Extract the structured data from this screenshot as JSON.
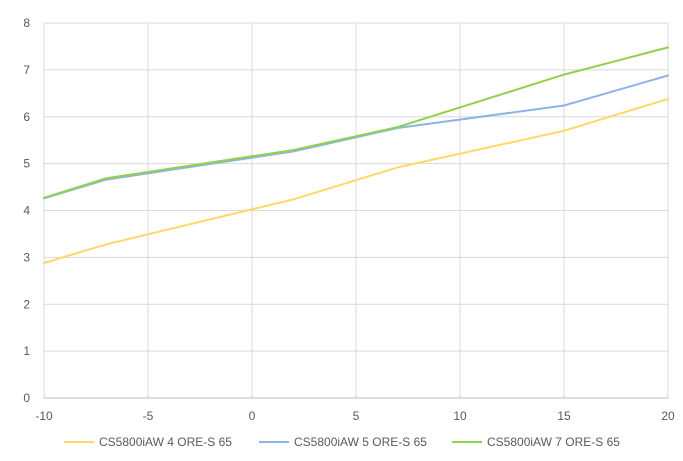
{
  "chart_data": {
    "type": "line",
    "title": "",
    "xlabel": "",
    "ylabel": "",
    "xlim": [
      -10,
      20
    ],
    "ylim": [
      0,
      8
    ],
    "x_ticks": [
      -10,
      -5,
      0,
      5,
      10,
      15,
      20
    ],
    "y_ticks": [
      0,
      1,
      2,
      3,
      4,
      5,
      6,
      7,
      8
    ],
    "grid": "on",
    "legend_position": "bottom",
    "series": [
      {
        "name": "CS5800iAW 4 ORE-S 65",
        "color": "#FFD966",
        "x": [
          -10,
          -7,
          2,
          7,
          15,
          20
        ],
        "y": [
          2.88,
          3.28,
          4.24,
          4.92,
          5.7,
          6.38
        ]
      },
      {
        "name": "CS5800iAW 5 ORE-S 65",
        "color": "#8EB4E3",
        "x": [
          -10,
          -7,
          2,
          7,
          15,
          20
        ],
        "y": [
          4.26,
          4.66,
          5.26,
          5.76,
          6.24,
          6.88
        ]
      },
      {
        "name": "CS5800iAW 7 ORE-S 65",
        "color": "#92D050",
        "x": [
          -10,
          -7,
          2,
          7,
          15,
          20
        ],
        "y": [
          4.27,
          4.69,
          5.29,
          5.78,
          6.9,
          7.48
        ]
      }
    ]
  }
}
